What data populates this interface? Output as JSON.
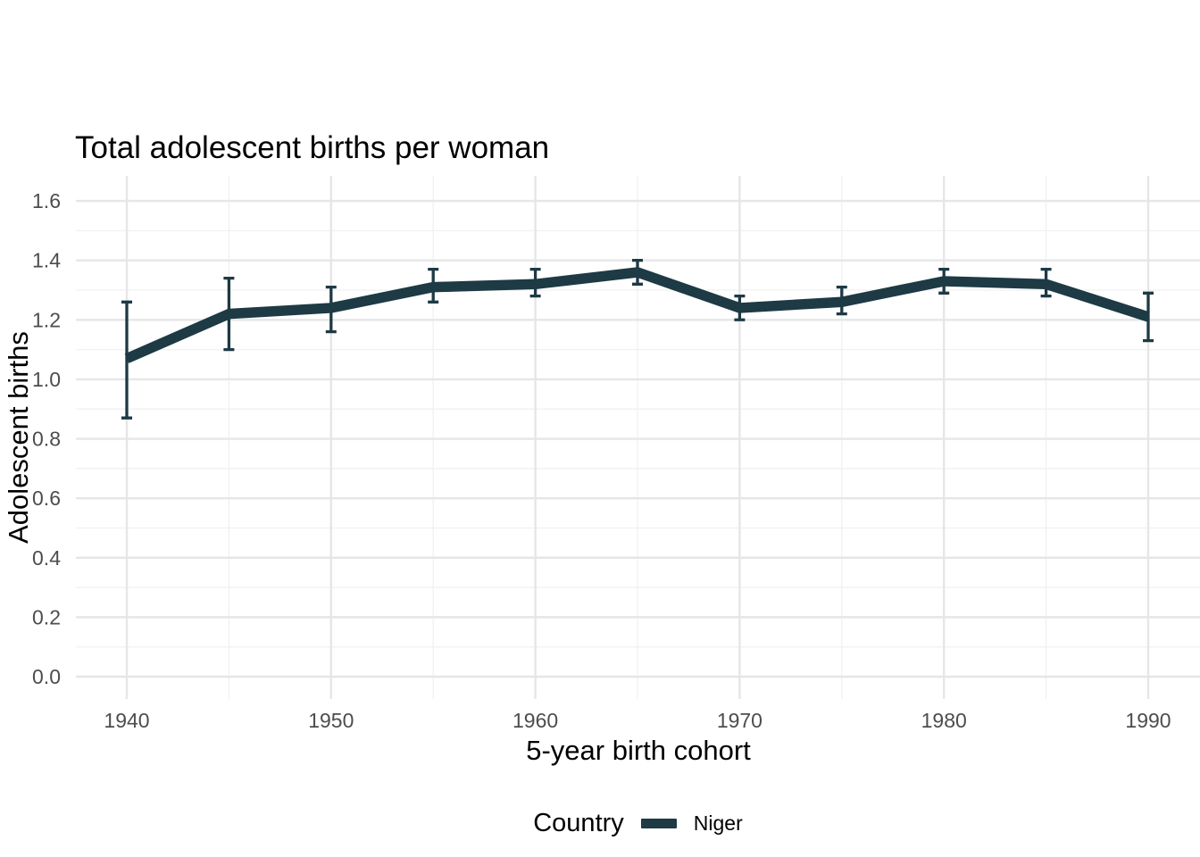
{
  "chart_data": {
    "type": "line",
    "title": "Total adolescent births per woman",
    "xlabel": "5-year birth cohort",
    "ylabel": "Adolescent births",
    "x_ticks": [
      1940,
      1950,
      1960,
      1970,
      1980,
      1990
    ],
    "y_ticks": [
      0.0,
      0.2,
      0.4,
      0.6,
      0.8,
      1.0,
      1.2,
      1.4,
      1.6
    ],
    "xlim": [
      1937.5,
      1992.5
    ],
    "ylim": [
      -0.08,
      1.68
    ],
    "grid": "major and minor, light gray on white",
    "legend_position": "bottom",
    "series": [
      {
        "name": "Niger",
        "color": "#1d3a45",
        "x": [
          1940,
          1945,
          1950,
          1955,
          1960,
          1965,
          1970,
          1975,
          1980,
          1985,
          1990
        ],
        "y": [
          1.07,
          1.22,
          1.24,
          1.31,
          1.32,
          1.36,
          1.24,
          1.26,
          1.33,
          1.32,
          1.21
        ],
        "y_low": [
          0.87,
          1.1,
          1.16,
          1.26,
          1.28,
          1.32,
          1.2,
          1.22,
          1.29,
          1.28,
          1.13
        ],
        "y_high": [
          1.26,
          1.34,
          1.31,
          1.37,
          1.37,
          1.4,
          1.28,
          1.31,
          1.37,
          1.37,
          1.29
        ],
        "error_bars": true
      }
    ]
  },
  "legend": {
    "title": "Country",
    "items": [
      {
        "label": "Niger",
        "color": "#1d3a45",
        "glyph": "line-swatch"
      }
    ]
  },
  "colors": {
    "background": "#ffffff",
    "line": "#1d3a45",
    "grid_major": "#e6e6e6",
    "grid_minor": "#f1f1f1",
    "tick_text": "#4d4d4d",
    "title_text": "#000000"
  }
}
